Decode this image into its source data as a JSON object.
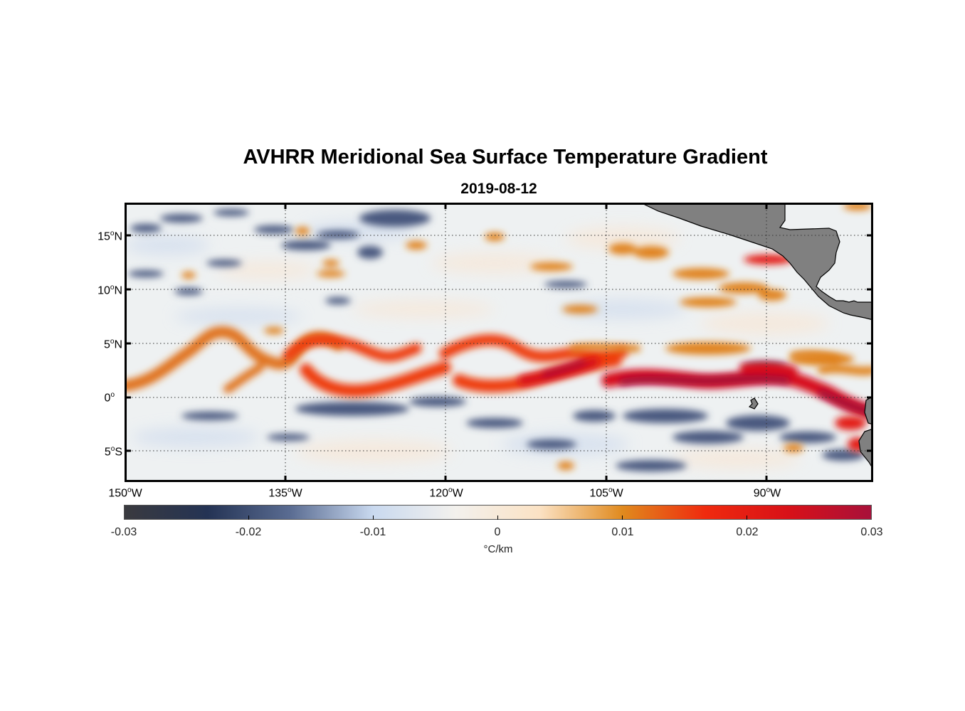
{
  "map": {
    "title": "AVHRR Meridional Sea Surface Temperature Gradient",
    "date": "2019-08-12",
    "lon_range": [
      -150,
      -80
    ],
    "lat_range": [
      -8,
      18
    ],
    "lat_ticks": [
      {
        "value": 15,
        "label_num": "15",
        "label_dir": "N"
      },
      {
        "value": 10,
        "label_num": "10",
        "label_dir": "N"
      },
      {
        "value": 5,
        "label_num": "5",
        "label_dir": "N"
      },
      {
        "value": 0,
        "label_num": "0",
        "label_dir": ""
      },
      {
        "value": -5,
        "label_num": "5",
        "label_dir": "S"
      }
    ],
    "lon_ticks": [
      {
        "value": -150,
        "label_num": "150",
        "label_dir": "W"
      },
      {
        "value": -135,
        "label_num": "135",
        "label_dir": "W"
      },
      {
        "value": -120,
        "label_num": "120",
        "label_dir": "W"
      },
      {
        "value": -105,
        "label_num": "105",
        "label_dir": "W"
      },
      {
        "value": -90,
        "label_num": "90",
        "label_dir": "W"
      }
    ],
    "land_color": "#808080",
    "grid_style": "dotted"
  },
  "colorbar": {
    "ticks": [
      "-0.03",
      "-0.02",
      "-0.01",
      "0",
      "0.01",
      "0.02",
      "0.03"
    ],
    "units": "°C/km",
    "range": [
      -0.03,
      0.03
    ],
    "colors": [
      "#3a3a3f",
      "#243354",
      "#5a6c92",
      "#c9d9ef",
      "#f3f1ed",
      "#fbe2c4",
      "#e08a1e",
      "#ef2a0e",
      "#d81118",
      "#a8113a"
    ]
  }
}
